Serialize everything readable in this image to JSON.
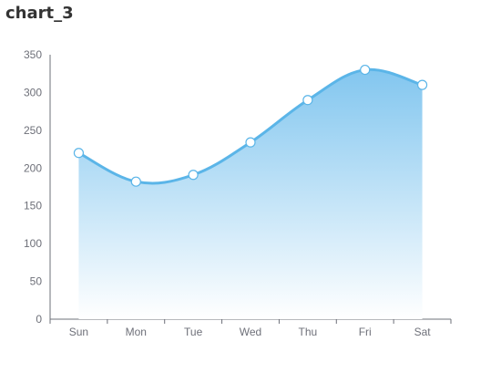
{
  "page": {
    "title": "chart_3"
  },
  "chart_data": {
    "type": "area",
    "title": "chart_3",
    "categories": [
      "Sun",
      "Mon",
      "Tue",
      "Wed",
      "Thu",
      "Fri",
      "Sat"
    ],
    "series": [
      {
        "values": [
          220,
          182,
          191,
          234,
          290,
          330,
          310
        ]
      }
    ],
    "ylim": [
      0,
      350
    ],
    "yticks": [
      0,
      50,
      100,
      150,
      200,
      250,
      300,
      350
    ],
    "smooth": true,
    "grid": false,
    "colors": {
      "line": "#5bb5e8",
      "fill_top": "#82c6ef",
      "fill_bottom": "#ffffff",
      "marker_fill": "#ffffff",
      "axis": "#6e7079"
    }
  }
}
